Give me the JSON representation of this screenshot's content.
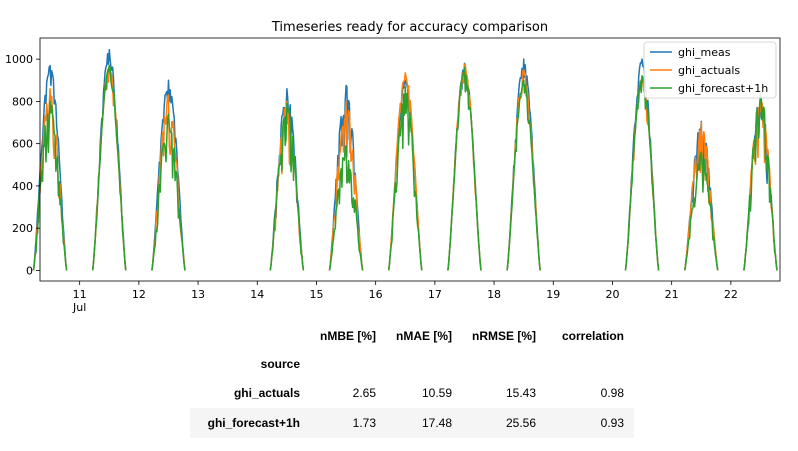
{
  "chart_data": {
    "type": "line",
    "title": "Timeseries ready for accuracy comparison",
    "xlabel": "",
    "ylabel": "",
    "xlim": [
      10.33,
      22.83
    ],
    "ylim": [
      -50,
      1100
    ],
    "yticks": [
      0,
      200,
      400,
      600,
      800,
      1000
    ],
    "xticks": [
      11,
      12,
      13,
      14,
      15,
      16,
      17,
      18,
      19,
      20,
      21,
      22
    ],
    "xtick_sublabel": {
      "at": 11,
      "text": "Jul"
    },
    "legend_position": "top-right",
    "grid": false,
    "series": [
      {
        "name": "ghi_meas",
        "color": "#1f77b4",
        "days": [
          {
            "day": 10,
            "peak": 970
          },
          {
            "day": 11,
            "peak": 1045
          },
          {
            "day": 12,
            "peak": 900
          },
          {
            "day": 14,
            "peak": 860
          },
          {
            "day": 15,
            "peak": 875
          },
          {
            "day": 16,
            "peak": 900
          },
          {
            "day": 17,
            "peak": 980
          },
          {
            "day": 18,
            "peak": 1000
          },
          {
            "day": 20,
            "peak": 1000
          },
          {
            "day": 21,
            "peak": 705
          },
          {
            "day": 22,
            "peak": 830
          }
        ]
      },
      {
        "name": "ghi_actuals",
        "color": "#ff7f0e",
        "days": [
          {
            "day": 10,
            "peak": 860
          },
          {
            "day": 11,
            "peak": 970
          },
          {
            "day": 12,
            "peak": 830
          },
          {
            "day": 14,
            "peak": 800
          },
          {
            "day": 15,
            "peak": 800
          },
          {
            "day": 16,
            "peak": 935
          },
          {
            "day": 17,
            "peak": 975
          },
          {
            "day": 18,
            "peak": 950
          },
          {
            "day": 20,
            "peak": 920
          },
          {
            "day": 21,
            "peak": 700
          },
          {
            "day": 22,
            "peak": 840
          }
        ]
      },
      {
        "name": "ghi_forecast+1h",
        "color": "#2ca02c",
        "days": [
          {
            "day": 10,
            "peak": 800
          },
          {
            "day": 11,
            "peak": 970
          },
          {
            "day": 12,
            "peak": 740
          },
          {
            "day": 14,
            "peak": 790
          },
          {
            "day": 15,
            "peak": 590
          },
          {
            "day": 16,
            "peak": 870
          },
          {
            "day": 17,
            "peak": 960
          },
          {
            "day": 18,
            "peak": 900
          },
          {
            "day": 20,
            "peak": 920
          },
          {
            "day": 21,
            "peak": 560
          },
          {
            "day": 22,
            "peak": 830
          }
        ]
      }
    ]
  },
  "table": {
    "columns": [
      "nMBE [%]",
      "nMAE [%]",
      "nRMSE [%]",
      "correlation"
    ],
    "index_name": "source",
    "rows": [
      {
        "source": "ghi_actuals",
        "values": [
          "2.65",
          "10.59",
          "15.43",
          "0.98"
        ]
      },
      {
        "source": "ghi_forecast+1h",
        "values": [
          "1.73",
          "17.48",
          "25.56",
          "0.93"
        ]
      }
    ]
  }
}
